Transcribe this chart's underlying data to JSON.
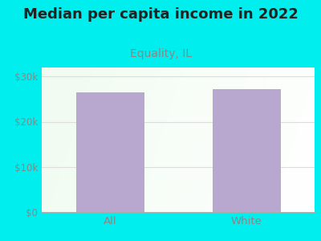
{
  "title": "Median per capita income in 2022",
  "subtitle": "Equality, IL",
  "categories": [
    "All",
    "White"
  ],
  "values": [
    26500,
    27200
  ],
  "bar_color": "#b8a8d0",
  "background_color": "#00eeee",
  "subtitle_color": "#888888",
  "title_color": "#222222",
  "tick_color": "#888888",
  "grid_color": "#dddddd",
  "ylim": [
    0,
    32000
  ],
  "yticks": [
    0,
    10000,
    20000,
    30000
  ],
  "ytick_labels": [
    "$0",
    "$10k",
    "$20k",
    "$30k"
  ],
  "title_fontsize": 13,
  "subtitle_fontsize": 10,
  "tick_fontsize": 8.5,
  "bar_width": 0.5
}
